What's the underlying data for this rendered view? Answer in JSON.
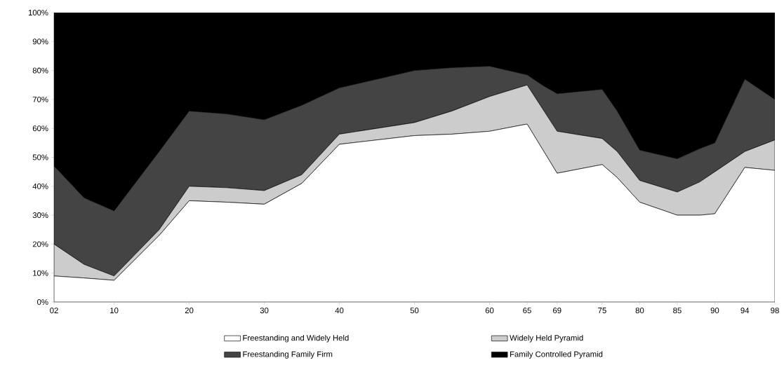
{
  "chart_data": {
    "type": "area",
    "stacked": true,
    "legend": "bottom",
    "grid": false,
    "marker": "none",
    "x": [
      1902,
      1906,
      1910,
      1916,
      1920,
      1925,
      1930,
      1935,
      1940,
      1950,
      1955,
      1960,
      1965,
      1967,
      1969,
      1975,
      1977,
      1980,
      1985,
      1988,
      1990,
      1994,
      1998
    ],
    "xlim": [
      1902,
      1998
    ],
    "xticks": [
      {
        "value": 1902,
        "label": "02"
      },
      {
        "value": 1910,
        "label": "10"
      },
      {
        "value": 1920,
        "label": "20"
      },
      {
        "value": 1930,
        "label": "30"
      },
      {
        "value": 1940,
        "label": "40"
      },
      {
        "value": 1950,
        "label": "50"
      },
      {
        "value": 1960,
        "label": "60"
      },
      {
        "value": 1965,
        "label": "65"
      },
      {
        "value": 1969,
        "label": "69"
      },
      {
        "value": 1975,
        "label": "75"
      },
      {
        "value": 1980,
        "label": "80"
      },
      {
        "value": 1985,
        "label": "85"
      },
      {
        "value": 1990,
        "label": "90"
      },
      {
        "value": 1994,
        "label": "94"
      },
      {
        "value": 1998,
        "label": "98"
      }
    ],
    "ylim": [
      0,
      100
    ],
    "yticks": [
      {
        "value": 0,
        "label": "0%"
      },
      {
        "value": 10,
        "label": "10%"
      },
      {
        "value": 20,
        "label": "20%"
      },
      {
        "value": 30,
        "label": "30%"
      },
      {
        "value": 40,
        "label": "40%"
      },
      {
        "value": 50,
        "label": "50%"
      },
      {
        "value": 60,
        "label": "60%"
      },
      {
        "value": 70,
        "label": "70%"
      },
      {
        "value": 80,
        "label": "80%"
      },
      {
        "value": 90,
        "label": "90%"
      },
      {
        "value": 100,
        "label": "100%"
      }
    ],
    "series": [
      {
        "name": "Freestanding and Widely Held",
        "color": "#ffffff",
        "values": [
          9,
          8.3,
          7.5,
          23,
          35,
          34.5,
          33.8,
          41,
          54.5,
          57.5,
          58,
          59,
          61.5,
          53,
          44.5,
          47.5,
          43,
          34.5,
          30,
          30,
          30.5,
          46.5,
          45.5
        ]
      },
      {
        "name": "Widely Held Pyramid",
        "color": "#cccccc",
        "values": [
          11,
          4.7,
          1.5,
          2,
          5,
          5,
          4.7,
          3,
          3.5,
          4.5,
          8,
          12,
          13.5,
          14,
          14.5,
          9,
          9,
          7.5,
          8,
          11.5,
          14.5,
          5.5,
          10.5
        ]
      },
      {
        "name": "Freestanding Family Firm",
        "color": "#444444",
        "values": [
          27,
          23,
          22.5,
          27,
          26,
          25.5,
          24.5,
          24,
          16,
          18,
          15,
          10.5,
          3.5,
          8,
          13,
          17,
          14,
          10.5,
          11.5,
          11.5,
          10,
          25,
          14
        ]
      },
      {
        "name": "Family Controlled Pyramid",
        "color": "#000000",
        "values": [
          53,
          64,
          68.5,
          48,
          34,
          35,
          37,
          32,
          26,
          20,
          19,
          18.5,
          21.5,
          25,
          28,
          26.5,
          34,
          47.5,
          50.5,
          47,
          45,
          23,
          30
        ]
      }
    ]
  }
}
